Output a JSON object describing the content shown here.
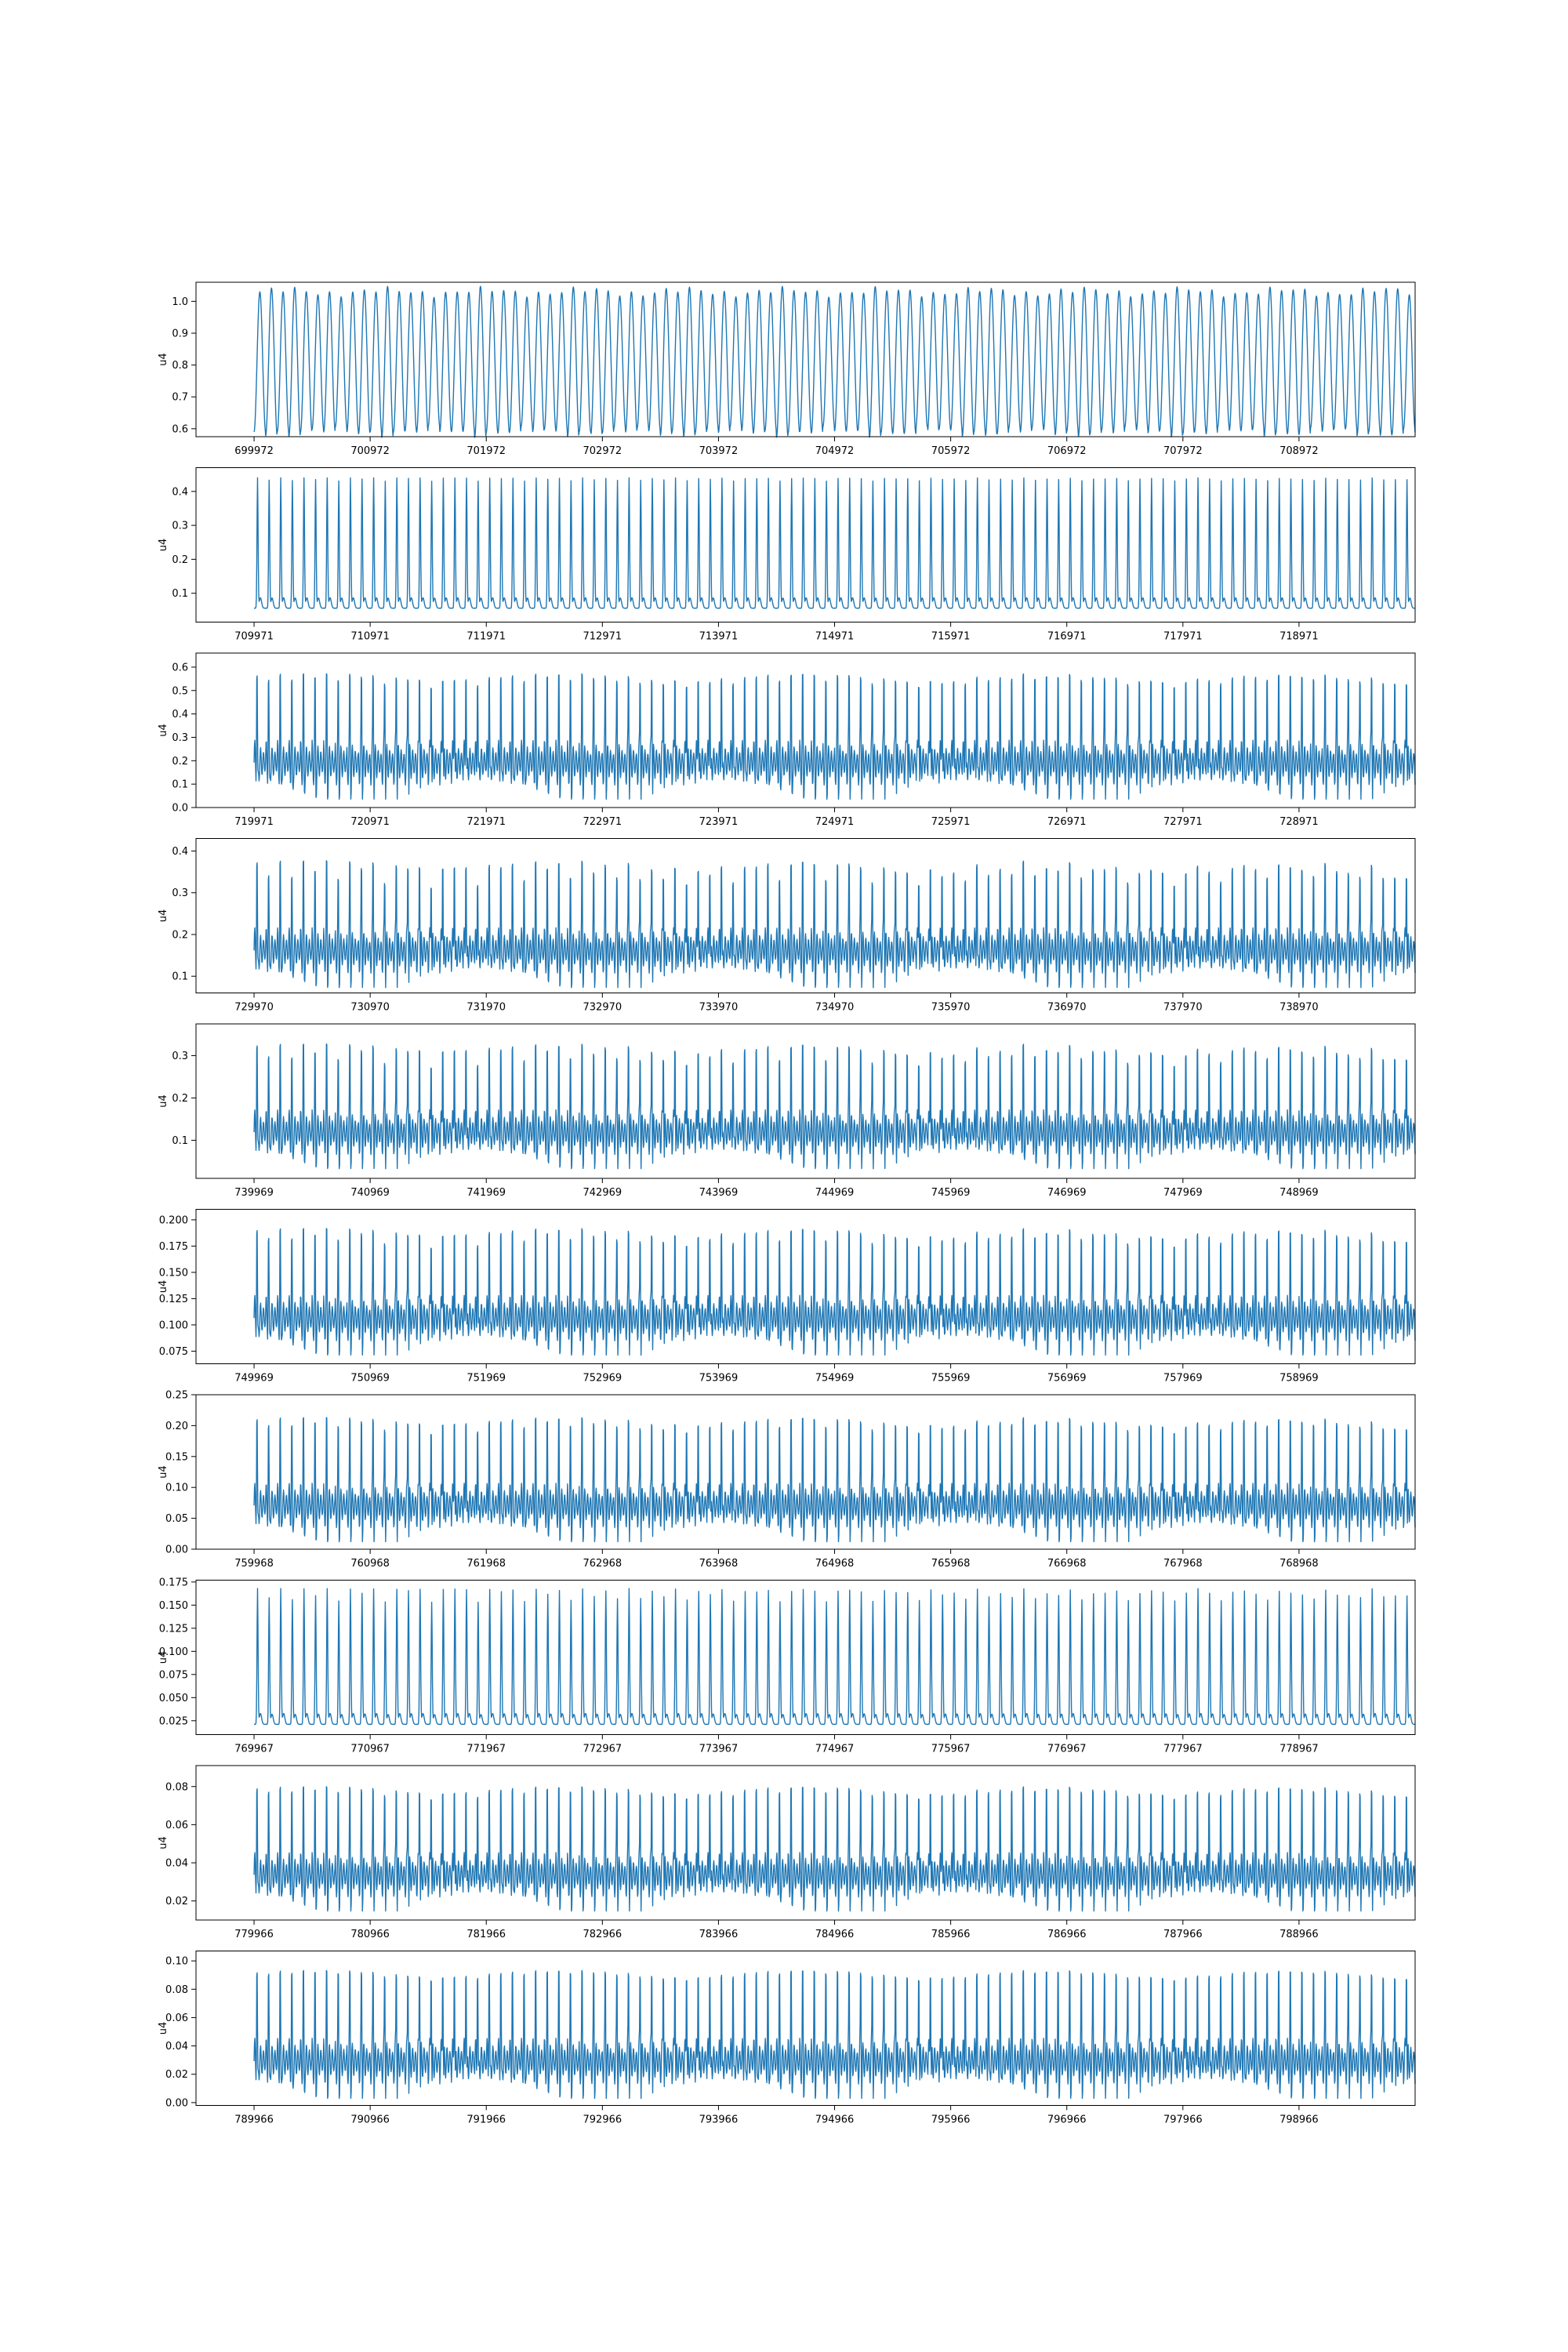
{
  "colors": {
    "series": "#1f77b4",
    "axes": "#000000",
    "background": "#ffffff"
  },
  "chart_data": [
    {
      "type": "line",
      "ylabel": "u4",
      "grid": false,
      "xlim": [
        699472,
        709972
      ],
      "ylim": [
        0.575,
        1.06
      ],
      "xticks": [
        699972,
        700972,
        701972,
        702972,
        703972,
        704972,
        705972,
        706972,
        707972,
        708972
      ],
      "yticks": [
        0.6,
        0.7,
        0.8,
        0.9,
        1.0
      ],
      "ytick_labels": [
        "0.6",
        "0.7",
        "0.8",
        "0.9",
        "1.0"
      ],
      "series": [
        {
          "x_start": 699972,
          "x_end": 709972,
          "cycles": 100,
          "min": 0.59,
          "max": 1.03,
          "shape": "sine",
          "peak_var": 0.05
        }
      ]
    },
    {
      "type": "line",
      "ylabel": "u4",
      "grid": false,
      "xlim": [
        709471,
        719971
      ],
      "ylim": [
        0.015,
        0.47
      ],
      "xticks": [
        709971,
        710971,
        711971,
        712971,
        713971,
        714971,
        715971,
        716971,
        717971,
        718971
      ],
      "yticks": [
        0.1,
        0.2,
        0.3,
        0.4
      ],
      "ytick_labels": [
        "0.1",
        "0.2",
        "0.3",
        "0.4"
      ],
      "series": [
        {
          "x_start": 709971,
          "x_end": 719971,
          "cycles": 100,
          "min": 0.04,
          "max": 0.44,
          "shape": "spike",
          "peak_var": 0.01
        }
      ]
    },
    {
      "type": "line",
      "ylabel": "u4",
      "grid": false,
      "xlim": [
        719471,
        729971
      ],
      "ylim": [
        0.0,
        0.66
      ],
      "xticks": [
        719971,
        720971,
        721971,
        722971,
        723971,
        724971,
        725971,
        726971,
        727971,
        728971
      ],
      "yticks": [
        0.0,
        0.1,
        0.2,
        0.3,
        0.4,
        0.5,
        0.6
      ],
      "ytick_labels": [
        "0.0",
        "0.1",
        "0.2",
        "0.3",
        "0.4",
        "0.5",
        "0.6"
      ],
      "series": [
        {
          "x_start": 719971,
          "x_end": 729971,
          "cycles": 100,
          "min": 0.03,
          "max": 0.63,
          "shape": "spike-osc",
          "peak_var": 0.04
        }
      ]
    },
    {
      "type": "line",
      "ylabel": "u4",
      "grid": false,
      "xlim": [
        729470,
        739970
      ],
      "ylim": [
        0.06,
        0.43
      ],
      "xticks": [
        729970,
        730970,
        731970,
        732970,
        733970,
        734970,
        735970,
        736970,
        737970,
        738970
      ],
      "yticks": [
        0.1,
        0.2,
        0.3,
        0.4
      ],
      "ytick_labels": [
        "0.1",
        "0.2",
        "0.3",
        "0.4"
      ],
      "series": [
        {
          "x_start": 729970,
          "x_end": 739970,
          "cycles": 100,
          "min": 0.07,
          "max": 0.41,
          "shape": "spike-osc",
          "peak_var": 0.06
        }
      ]
    },
    {
      "type": "line",
      "ylabel": "u4",
      "grid": false,
      "xlim": [
        739469,
        749969
      ],
      "ylim": [
        0.01,
        0.375
      ],
      "xticks": [
        739969,
        740969,
        741969,
        742969,
        743969,
        744969,
        745969,
        746969,
        747969,
        748969
      ],
      "yticks": [
        0.1,
        0.2,
        0.3
      ],
      "ytick_labels": [
        "0.1",
        "0.2",
        "0.3"
      ],
      "series": [
        {
          "x_start": 739969,
          "x_end": 749969,
          "cycles": 100,
          "min": 0.03,
          "max": 0.36,
          "shape": "spike-osc",
          "peak_var": 0.05
        }
      ]
    },
    {
      "type": "line",
      "ylabel": "u4",
      "grid": false,
      "xlim": [
        749469,
        759969
      ],
      "ylim": [
        0.063,
        0.21
      ],
      "xticks": [
        749969,
        750969,
        751969,
        752969,
        753969,
        754969,
        755969,
        756969,
        757969,
        758969
      ],
      "yticks": [
        0.075,
        0.1,
        0.125,
        0.15,
        0.175,
        0.2
      ],
      "ytick_labels": [
        "0.075",
        "0.100",
        "0.125",
        "0.150",
        "0.175",
        "0.200"
      ],
      "series": [
        {
          "x_start": 749969,
          "x_end": 759969,
          "cycles": 100,
          "min": 0.07,
          "max": 0.205,
          "shape": "spike-osc",
          "peak_var": 0.015
        }
      ]
    },
    {
      "type": "line",
      "ylabel": "u4",
      "grid": false,
      "xlim": [
        759468,
        769968
      ],
      "ylim": [
        0.0,
        0.25
      ],
      "xticks": [
        759968,
        760968,
        761968,
        762968,
        763968,
        764968,
        765968,
        766968,
        767968,
        768968
      ],
      "yticks": [
        0.0,
        0.05,
        0.1,
        0.15,
        0.2,
        0.25
      ],
      "ytick_labels": [
        "0.00",
        "0.05",
        "0.10",
        "0.15",
        "0.20",
        "0.25"
      ],
      "series": [
        {
          "x_start": 759968,
          "x_end": 769968,
          "cycles": 100,
          "min": 0.01,
          "max": 0.235,
          "shape": "spike-osc",
          "peak_var": 0.02
        }
      ]
    },
    {
      "type": "line",
      "ylabel": "u4",
      "grid": false,
      "xlim": [
        769467,
        779967
      ],
      "ylim": [
        0.01,
        0.177
      ],
      "xticks": [
        769967,
        770967,
        771967,
        772967,
        773967,
        774967,
        775967,
        776967,
        777967,
        778967
      ],
      "yticks": [
        0.025,
        0.05,
        0.075,
        0.1,
        0.125,
        0.15,
        0.175
      ],
      "ytick_labels": [
        "0.025",
        "0.050",
        "0.075",
        "0.100",
        "0.125",
        "0.150",
        "0.175"
      ],
      "series": [
        {
          "x_start": 769967,
          "x_end": 779967,
          "cycles": 100,
          "min": 0.015,
          "max": 0.168,
          "shape": "spike",
          "peak_var": 0.015
        }
      ]
    },
    {
      "type": "line",
      "ylabel": "u4",
      "grid": false,
      "xlim": [
        779466,
        789966
      ],
      "ylim": [
        0.01,
        0.091
      ],
      "xticks": [
        779966,
        780966,
        781966,
        782966,
        783966,
        784966,
        785966,
        786966,
        787966,
        788966
      ],
      "yticks": [
        0.02,
        0.04,
        0.06,
        0.08
      ],
      "ytick_labels": [
        "0.02",
        "0.04",
        "0.06",
        "0.08"
      ],
      "series": [
        {
          "x_start": 779966,
          "x_end": 789966,
          "cycles": 100,
          "min": 0.014,
          "max": 0.087,
          "shape": "spike-osc",
          "peak_var": 0.004
        }
      ]
    },
    {
      "type": "line",
      "ylabel": "u4",
      "grid": false,
      "xlim": [
        789466,
        799966
      ],
      "ylim": [
        -0.002,
        0.107
      ],
      "xticks": [
        789966,
        790966,
        791966,
        792966,
        793966,
        794966,
        795966,
        796966,
        797966,
        798966
      ],
      "yticks": [
        0.0,
        0.02,
        0.04,
        0.06,
        0.08,
        0.1
      ],
      "ytick_labels": [
        "0.00",
        "0.02",
        "0.04",
        "0.06",
        "0.08",
        "0.10"
      ],
      "series": [
        {
          "x_start": 789966,
          "x_end": 799966,
          "cycles": 100,
          "min": 0.002,
          "max": 0.103,
          "shape": "spike-osc",
          "peak_var": 0.003
        }
      ]
    }
  ]
}
